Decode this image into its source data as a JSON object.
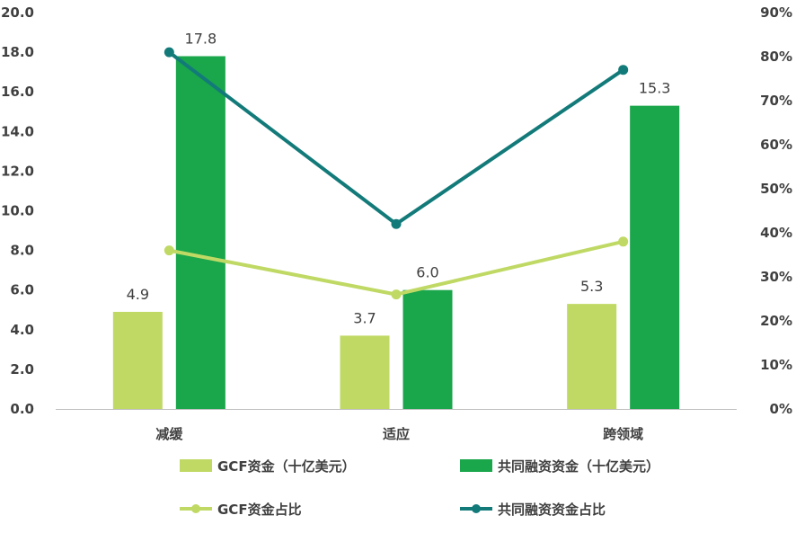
{
  "chart_data": {
    "type": "bar",
    "categories": [
      "减缓",
      "适应",
      "跨领域"
    ],
    "series": [
      {
        "name": "GCF资金（十亿美元）",
        "kind": "bar",
        "axis": "left",
        "color": "#bfd964",
        "values": [
          4.9,
          3.7,
          5.3
        ],
        "labels": [
          "4.9",
          "3.7",
          "5.3"
        ]
      },
      {
        "name": "共同融资资金（十亿美元）",
        "kind": "bar",
        "axis": "left",
        "color": "#1aa64b",
        "values": [
          17.8,
          6.0,
          15.3
        ],
        "labels": [
          "17.8",
          "6.0",
          "15.3"
        ]
      },
      {
        "name": "GCF资金占比",
        "kind": "line",
        "axis": "right",
        "color": "#bfd964",
        "values": [
          0.36,
          0.26,
          0.38
        ]
      },
      {
        "name": "共同融资资金占比",
        "kind": "line",
        "axis": "right",
        "color": "#137a7a",
        "values": [
          0.81,
          0.42,
          0.77
        ]
      }
    ],
    "y_left": {
      "ylim": [
        0,
        20
      ],
      "ticks": [
        "0.0",
        "2.0",
        "4.0",
        "6.0",
        "8.0",
        "10.0",
        "12.0",
        "14.0",
        "16.0",
        "18.0",
        "20.0"
      ]
    },
    "y_right": {
      "ylim": [
        0,
        0.9
      ],
      "ticks": [
        "0%",
        "10%",
        "20%",
        "30%",
        "40%",
        "50%",
        "60%",
        "70%",
        "80%",
        "90%"
      ]
    },
    "title": "",
    "xlabel": "",
    "grid": false,
    "legend_position": "bottom"
  }
}
